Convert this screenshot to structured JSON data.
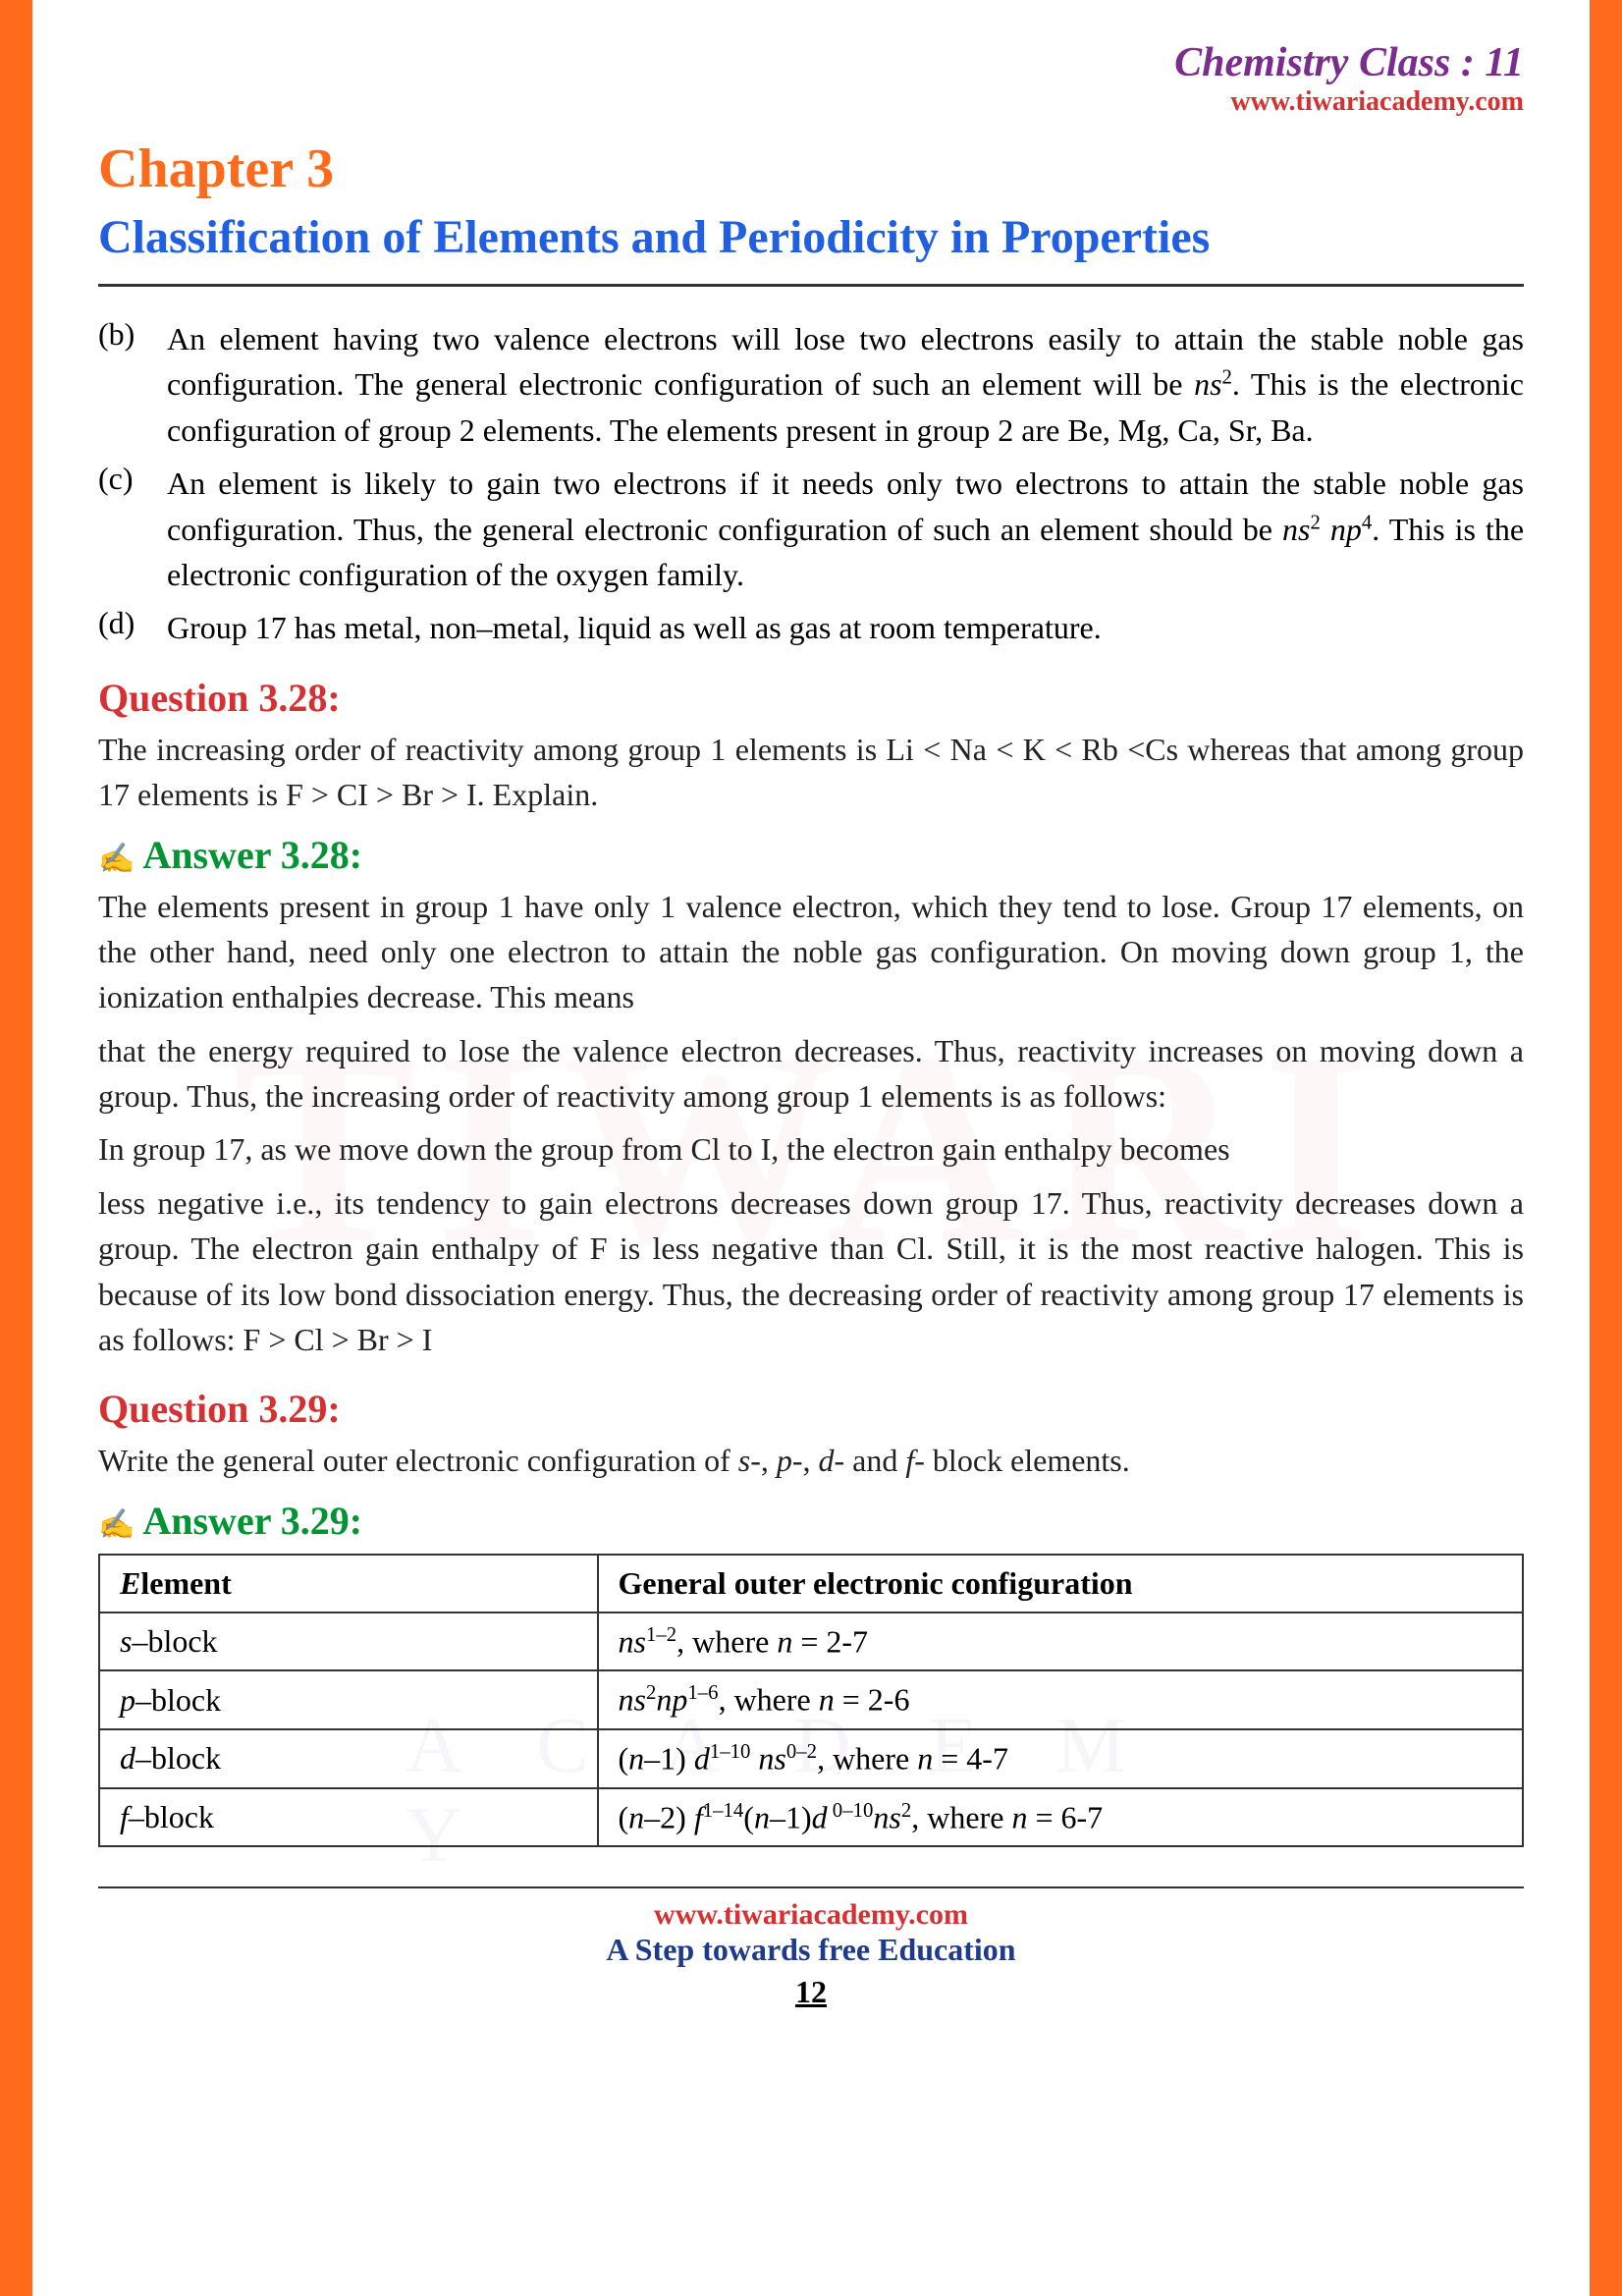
{
  "header": {
    "class_label": "Chemistry Class : 11",
    "url": "www.tiwariacademy.com"
  },
  "chapter": {
    "label": "Chapter  3",
    "title": "Classification of Elements and Periodicity in Properties"
  },
  "items": [
    {
      "label": "(b)",
      "text_parts": [
        "An element having two valence electrons will lose two electrons easily to attain the stable noble gas configuration. The general electronic configuration of such an element will be ",
        {
          "i": "ns"
        },
        {
          "sup": "2"
        },
        ". This is the electronic configuration of group 2 elements. The elements present in group 2 are Be, Mg, Ca, Sr, Ba."
      ]
    },
    {
      "label": "(c)",
      "text_parts": [
        "An element is likely to gain two electrons if it needs only two electrons to attain the stable noble gas configuration. Thus, the general electronic configuration of such an element should be ",
        {
          "i": "ns"
        },
        {
          "sup": "2"
        },
        " ",
        {
          "i": "np"
        },
        {
          "sup": "4"
        },
        ". This is the electronic configuration of the oxygen family."
      ]
    },
    {
      "label": "(d)",
      "text_parts": [
        "Group 17 has metal, non–metal, liquid as well as gas at room temperature."
      ]
    }
  ],
  "q328": {
    "label": "Question 3.28:",
    "text": "The increasing order of reactivity among group 1 elements is Li < Na < K < Rb <Cs whereas that among group 17 elements is F > CI > Br > I. Explain.",
    "answer_label": "Answer 3.28:",
    "answer_paras": [
      "The elements present in group 1 have only 1 valence electron, which they tend to lose. Group 17 elements, on the other hand, need only one electron to attain the noble gas configuration. On moving down group 1, the ionization enthalpies decrease. This means",
      "that the energy required to lose the valence electron decreases. Thus, reactivity increases on moving down a group. Thus, the increasing order of reactivity among group 1 elements  is as follows:",
      "In group 17, as we move down the group from Cl to I, the electron gain enthalpy becomes",
      "less negative i.e., its tendency to gain electrons decreases down group 17. Thus, reactivity decreases down a group. The electron gain enthalpy of F is less negative than Cl. Still, it is the most reactive halogen. This is because of its low bond dissociation energy. Thus, the  decreasing order of reactivity among group 17 elements is as follows: F > Cl > Br > I"
    ]
  },
  "q329": {
    "label": "Question 3.29:",
    "text_parts": [
      "Write the general outer electronic configuration of ",
      {
        "i": "s-"
      },
      ", ",
      {
        "i": "p-"
      },
      ", ",
      {
        "i": "d-"
      },
      " and ",
      {
        "i": "f-"
      },
      " block elements."
    ],
    "answer_label": "Answer 3.29:",
    "table": {
      "headers": [
        "Element",
        "General outer electronic configuration"
      ],
      "header_styles": {
        "col0_italic_first": "E"
      },
      "rows": [
        {
          "block": "s",
          "config_parts": [
            {
              "i": "ns"
            },
            {
              "sup": "1–2"
            },
            ", where ",
            {
              "i": "n"
            },
            " = 2-7"
          ]
        },
        {
          "block": "p",
          "config_parts": [
            {
              "i": "ns"
            },
            {
              "sup": "2"
            },
            {
              "i": "np"
            },
            {
              "sup": "1–6"
            },
            ", where ",
            {
              "i": "n"
            },
            " = 2-6"
          ]
        },
        {
          "block": "d",
          "config_parts": [
            "(",
            {
              "i": "n"
            },
            "–1) ",
            {
              "i": "d"
            },
            {
              "sup": "1–10"
            },
            " ",
            {
              "i": "ns"
            },
            {
              "sup": "0–2"
            },
            ", where ",
            {
              "i": "n"
            },
            " = 4-7"
          ]
        },
        {
          "block": "f",
          "config_parts": [
            "(",
            {
              "i": "n"
            },
            "–2) ",
            {
              "i": "f"
            },
            {
              "sup": "1–14"
            },
            "(",
            {
              "i": "n"
            },
            "–1)",
            {
              "i": "d"
            },
            {
              "sup": " 0–10"
            },
            {
              "i": "ns"
            },
            {
              "sup": "2"
            },
            ", where ",
            {
              "i": "n"
            },
            " = 6-7"
          ]
        }
      ]
    }
  },
  "footer": {
    "url": "www.tiwariacademy.com",
    "tag": "A Step towards free Education",
    "page": "12"
  },
  "watermark": {
    "main": "TIWARI",
    "sub": "A C A D E M Y"
  },
  "colors": {
    "orange": "#ff6b1a",
    "purple": "#7b2d8e",
    "red": "#d63031",
    "blue": "#2060e0",
    "green": "#009432",
    "text": "#222"
  }
}
